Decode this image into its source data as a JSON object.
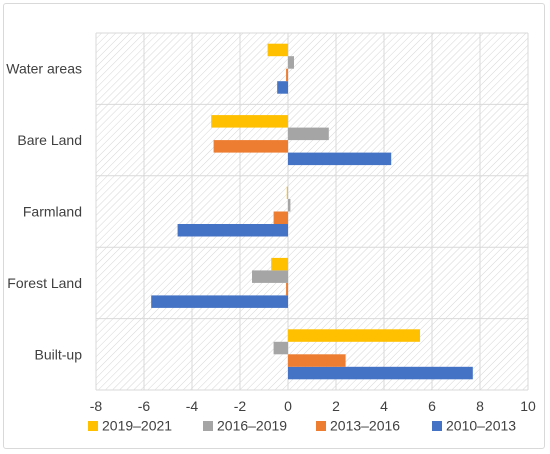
{
  "chart_data": {
    "type": "bar",
    "orientation": "horizontal",
    "categories": [
      "Built-up",
      "Forest Land",
      "Farmland",
      "Bare Land",
      "Water areas"
    ],
    "series": [
      {
        "name": "2010–2013",
        "color": "#4472c4",
        "values": [
          7.7,
          -5.7,
          -4.6,
          4.3,
          -0.45
        ]
      },
      {
        "name": "2013–2016",
        "color": "#ed7d31",
        "values": [
          2.4,
          -0.08,
          -0.6,
          -3.1,
          -0.08
        ]
      },
      {
        "name": "2016–2019",
        "color": "#a5a5a5",
        "values": [
          -0.6,
          -1.5,
          0.1,
          1.7,
          0.25
        ]
      },
      {
        "name": "2019–2021",
        "color": "#ffc000",
        "values": [
          5.5,
          -0.7,
          -0.05,
          -3.2,
          -0.85
        ]
      }
    ],
    "xlim": [
      -8,
      10
    ],
    "xticks": [
      "-8",
      "-6",
      "-4",
      "-2",
      "0",
      "2",
      "4",
      "6",
      "8",
      "10"
    ],
    "grid": "vertical",
    "legend_position": "bottom",
    "title": "",
    "xlabel": "",
    "ylabel": ""
  }
}
